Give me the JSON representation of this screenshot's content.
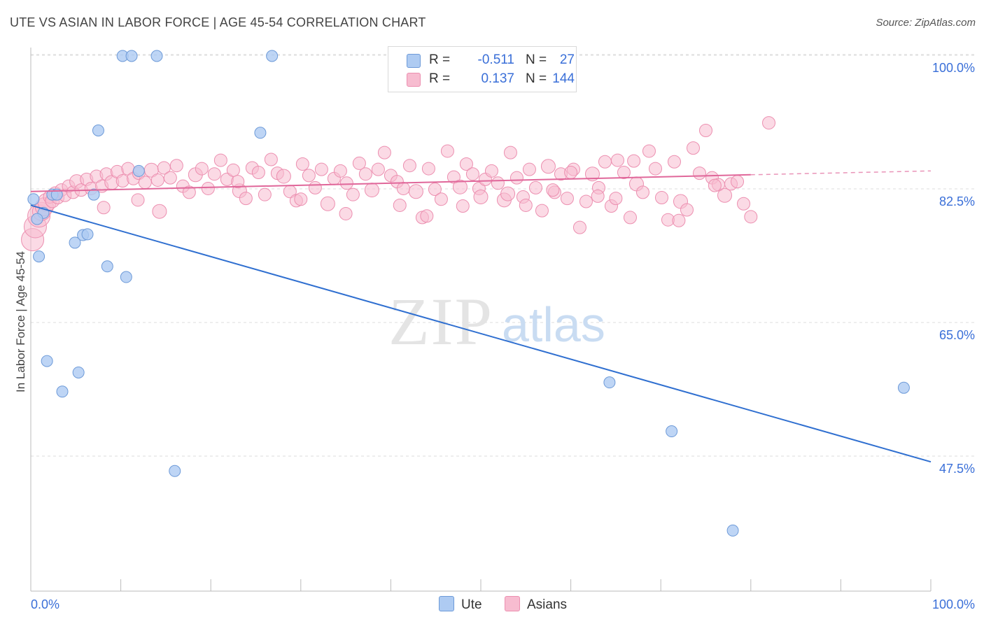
{
  "title": "UTE VS ASIAN IN LABOR FORCE | AGE 45-54 CORRELATION CHART",
  "source": "Source: ZipAtlas.com",
  "watermark": {
    "zip": "ZIP",
    "atlas": "atlas"
  },
  "legend": {
    "rows": [
      {
        "label": "R =",
        "r": "-0.511",
        "n_label": "N =",
        "n": "27"
      },
      {
        "label": "R =",
        "r": "0.137",
        "n_label": "N =",
        "n": "144"
      }
    ],
    "bottom": [
      "Ute",
      "Asians"
    ]
  },
  "colors": {
    "ute_fill": "#aecbf2",
    "ute_stroke": "#6d9ad8",
    "ute_line": "#2f6fd0",
    "asian_fill": "#f7bcd0",
    "asian_stroke": "#ec8fb0",
    "asian_line": "#e0679a",
    "tick_label": "#3a6fd8",
    "grid": "#dddddd"
  },
  "chart_data": {
    "type": "scatter",
    "title": "UTE VS ASIAN IN LABOR FORCE | AGE 45-54 CORRELATION CHART",
    "xlabel": "",
    "ylabel": "In Labor Force | Age 45-54",
    "xlim": [
      0,
      100
    ],
    "ylim": [
      28,
      101.5
    ],
    "x_tick_labels": [
      "0.0%",
      "100.0%"
    ],
    "y_ticks": [
      47.5,
      65.0,
      82.5,
      100.0
    ],
    "y_tick_labels": [
      "47.5%",
      "65.0%",
      "82.5%",
      "100.0%"
    ],
    "grid": true,
    "legend_position": "top-center",
    "series": [
      {
        "name": "Ute",
        "r": -0.511,
        "n": 27,
        "trend": {
          "x": [
            0,
            100
          ],
          "y": [
            82.0,
            48.4
          ]
        },
        "points": [
          [
            0.3,
            82.8
          ],
          [
            0.9,
            75.3
          ],
          [
            1.4,
            81.0
          ],
          [
            1.8,
            61.6
          ],
          [
            2.4,
            83.4
          ],
          [
            2.9,
            83.4
          ],
          [
            3.5,
            57.6
          ],
          [
            4.9,
            77.1
          ],
          [
            5.3,
            60.1
          ],
          [
            5.8,
            78.1
          ],
          [
            6.3,
            78.2
          ],
          [
            7.0,
            83.4
          ],
          [
            7.5,
            91.8
          ],
          [
            8.5,
            74.0
          ],
          [
            10.2,
            102.4
          ],
          [
            10.6,
            72.6
          ],
          [
            11.2,
            102.4
          ],
          [
            12.0,
            86.5
          ],
          [
            14.0,
            102.4
          ],
          [
            16.0,
            47.2
          ],
          [
            25.5,
            91.5
          ],
          [
            26.8,
            102.4
          ],
          [
            64.3,
            58.8
          ],
          [
            71.2,
            52.4
          ],
          [
            78.0,
            39.4
          ],
          [
            97.0,
            58.1
          ],
          [
            0.7,
            80.2
          ]
        ]
      },
      {
        "name": "Asians",
        "r": 0.137,
        "n": 144,
        "trend": {
          "x": [
            0,
            80
          ],
          "y": [
            83.8,
            86.0
          ]
        },
        "trend_dashed": {
          "x": [
            80,
            100
          ],
          "y": [
            86.0,
            86.5
          ]
        },
        "points": [
          [
            0.2,
            77.5
          ],
          [
            0.5,
            79.2
          ],
          [
            0.9,
            80.6
          ],
          [
            1.2,
            81.2
          ],
          [
            1.5,
            81.8
          ],
          [
            1.8,
            82.4
          ],
          [
            2.1,
            83.1
          ],
          [
            2.4,
            82.6
          ],
          [
            2.7,
            83.6
          ],
          [
            3.0,
            83.0
          ],
          [
            3.4,
            84.0
          ],
          [
            3.8,
            83.3
          ],
          [
            4.2,
            84.5
          ],
          [
            4.7,
            83.7
          ],
          [
            5.1,
            85.1
          ],
          [
            5.6,
            84.0
          ],
          [
            6.2,
            85.4
          ],
          [
            6.7,
            84.2
          ],
          [
            7.3,
            85.8
          ],
          [
            7.9,
            84.5
          ],
          [
            8.4,
            86.1
          ],
          [
            9.0,
            85.0
          ],
          [
            9.6,
            86.4
          ],
          [
            10.2,
            85.2
          ],
          [
            10.8,
            86.8
          ],
          [
            11.4,
            85.5
          ],
          [
            12.0,
            86.2
          ],
          [
            12.7,
            85.0
          ],
          [
            13.4,
            86.6
          ],
          [
            14.1,
            85.3
          ],
          [
            14.8,
            86.9
          ],
          [
            15.5,
            85.6
          ],
          [
            16.2,
            87.2
          ],
          [
            16.9,
            84.5
          ],
          [
            17.6,
            83.7
          ],
          [
            18.3,
            86.0
          ],
          [
            19.0,
            86.8
          ],
          [
            19.7,
            84.2
          ],
          [
            20.4,
            86.1
          ],
          [
            21.1,
            87.9
          ],
          [
            21.8,
            85.4
          ],
          [
            22.5,
            86.6
          ],
          [
            23.2,
            83.9
          ],
          [
            23.9,
            82.9
          ],
          [
            24.6,
            86.9
          ],
          [
            25.3,
            86.3
          ],
          [
            26.0,
            83.4
          ],
          [
            26.7,
            88.0
          ],
          [
            27.4,
            86.2
          ],
          [
            28.1,
            85.8
          ],
          [
            28.8,
            83.8
          ],
          [
            29.5,
            82.6
          ],
          [
            30.2,
            87.4
          ],
          [
            30.9,
            85.9
          ],
          [
            31.6,
            84.3
          ],
          [
            32.3,
            86.7
          ],
          [
            33.0,
            82.2
          ],
          [
            33.7,
            85.5
          ],
          [
            34.4,
            86.5
          ],
          [
            35.1,
            84.9
          ],
          [
            35.8,
            83.4
          ],
          [
            36.5,
            87.5
          ],
          [
            37.2,
            86.1
          ],
          [
            37.9,
            84.0
          ],
          [
            38.6,
            86.7
          ],
          [
            39.3,
            88.9
          ],
          [
            40.0,
            85.9
          ],
          [
            40.7,
            85.1
          ],
          [
            41.4,
            84.2
          ],
          [
            42.1,
            87.2
          ],
          [
            42.8,
            83.8
          ],
          [
            43.5,
            80.4
          ],
          [
            44.2,
            86.8
          ],
          [
            44.9,
            84.1
          ],
          [
            45.6,
            82.8
          ],
          [
            46.3,
            89.1
          ],
          [
            47.0,
            85.7
          ],
          [
            47.7,
            84.4
          ],
          [
            48.4,
            87.4
          ],
          [
            49.1,
            86.1
          ],
          [
            49.8,
            84.2
          ],
          [
            50.5,
            85.4
          ],
          [
            51.2,
            86.5
          ],
          [
            51.9,
            84.9
          ],
          [
            52.6,
            82.7
          ],
          [
            53.3,
            88.9
          ],
          [
            54.0,
            85.6
          ],
          [
            54.7,
            83.1
          ],
          [
            55.4,
            86.7
          ],
          [
            56.1,
            84.3
          ],
          [
            56.8,
            81.3
          ],
          [
            57.5,
            87.1
          ],
          [
            58.2,
            83.7
          ],
          [
            58.9,
            86.1
          ],
          [
            59.6,
            82.9
          ],
          [
            60.3,
            86.7
          ],
          [
            61.0,
            79.1
          ],
          [
            61.7,
            82.5
          ],
          [
            62.4,
            86.1
          ],
          [
            63.1,
            84.3
          ],
          [
            63.8,
            87.7
          ],
          [
            64.5,
            81.9
          ],
          [
            65.2,
            87.9
          ],
          [
            65.9,
            86.3
          ],
          [
            66.6,
            80.4
          ],
          [
            67.3,
            84.8
          ],
          [
            68.0,
            83.7
          ],
          [
            68.7,
            89.1
          ],
          [
            69.4,
            86.8
          ],
          [
            70.1,
            83.0
          ],
          [
            70.8,
            80.1
          ],
          [
            71.5,
            87.7
          ],
          [
            72.2,
            82.5
          ],
          [
            72.9,
            81.4
          ],
          [
            73.6,
            89.5
          ],
          [
            74.3,
            86.2
          ],
          [
            75.0,
            91.8
          ],
          [
            75.7,
            85.6
          ],
          [
            76.4,
            84.7
          ],
          [
            77.1,
            83.3
          ],
          [
            77.8,
            84.8
          ],
          [
            78.5,
            85.1
          ],
          [
            79.2,
            82.2
          ],
          [
            80.0,
            80.5
          ],
          [
            82.0,
            92.8
          ],
          [
            11.9,
            82.7
          ],
          [
            14.3,
            81.2
          ],
          [
            8.1,
            81.7
          ],
          [
            23.0,
            85.1
          ],
          [
            30.0,
            82.8
          ],
          [
            35.0,
            80.9
          ],
          [
            41.0,
            82.0
          ],
          [
            48.0,
            81.9
          ],
          [
            53.0,
            83.5
          ],
          [
            58.0,
            84.0
          ],
          [
            63.0,
            83.2
          ],
          [
            67.0,
            87.8
          ],
          [
            72.0,
            80.0
          ],
          [
            76.0,
            84.6
          ],
          [
            44.0,
            80.6
          ],
          [
            50.0,
            83.1
          ],
          [
            55.0,
            82.0
          ],
          [
            60.0,
            86.3
          ],
          [
            65.0,
            82.9
          ]
        ]
      }
    ]
  }
}
